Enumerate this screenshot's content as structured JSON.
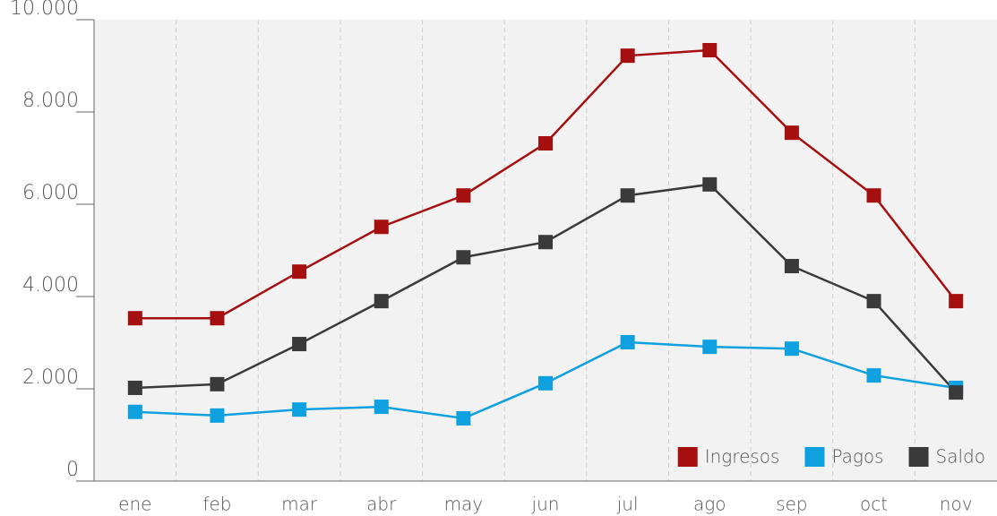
{
  "chart_data": {
    "type": "line",
    "categories": [
      "ene",
      "feb",
      "mar",
      "abr",
      "may",
      "jun",
      "jul",
      "ago",
      "sep",
      "oct",
      "nov"
    ],
    "series": [
      {
        "name": "Ingresos",
        "color": "#a50f0f",
        "values": [
          3530,
          3530,
          4540,
          5510,
          6190,
          7320,
          9220,
          9340,
          7550,
          6190,
          3900
        ]
      },
      {
        "name": "Pagos",
        "color": "#0fa0e0",
        "values": [
          1500,
          1420,
          1550,
          1610,
          1360,
          2120,
          3010,
          2910,
          2870,
          2290,
          2020
        ]
      },
      {
        "name": "Saldo",
        "color": "#3a3a3a",
        "values": [
          2020,
          2100,
          2970,
          3900,
          4850,
          5180,
          6190,
          6430,
          4660,
          3900,
          1920
        ]
      }
    ],
    "ylim": [
      0,
      10000
    ],
    "yticks": [
      0,
      {
        "value": 2000,
        "label": "2.000"
      },
      {
        "value": 4000,
        "label": "4.000"
      },
      {
        "value": 6000,
        "label": "6.000"
      },
      {
        "value": 8000,
        "label": "8.000"
      },
      {
        "value": 10000,
        "label": "10.000"
      }
    ],
    "grid": true,
    "legend": "lower right"
  }
}
